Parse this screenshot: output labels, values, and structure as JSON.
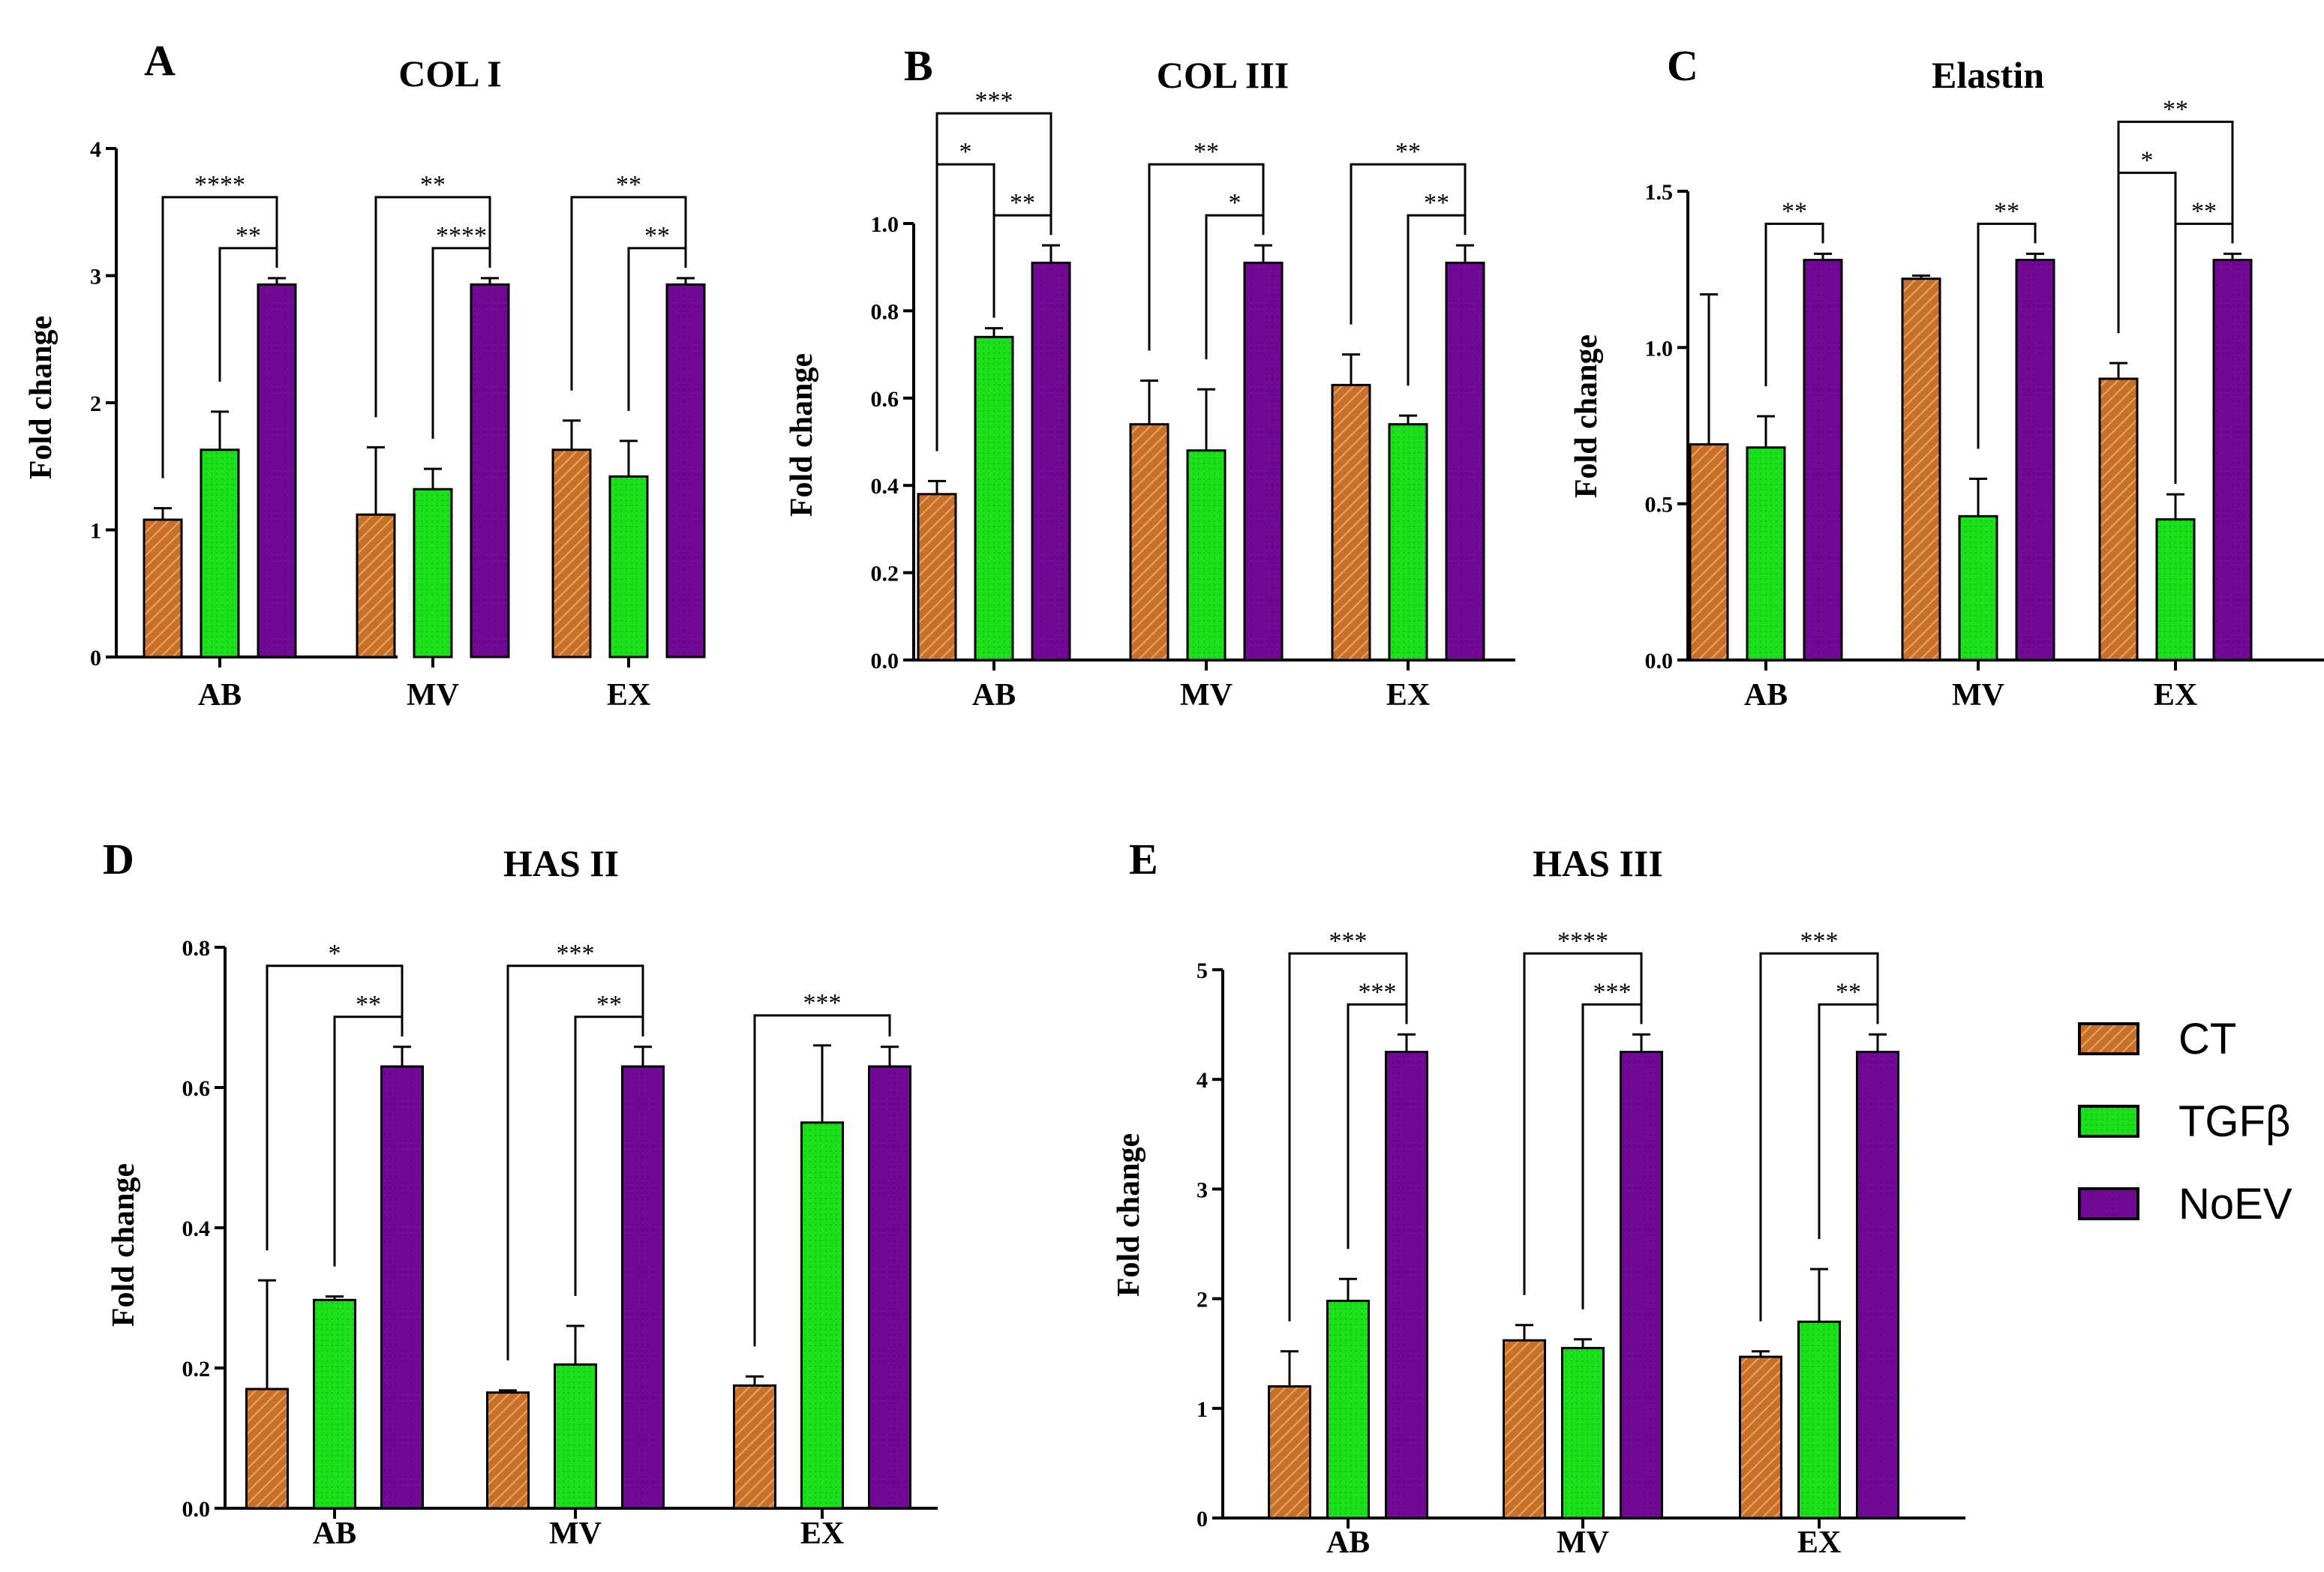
{
  "series_colors": {
    "CT": "#c8702a",
    "TGFβ": "#1be01b",
    "NoEV": "#720896"
  },
  "legend": [
    {
      "name": "CT",
      "label": "CT",
      "color": "#c8702a",
      "hatched": true
    },
    {
      "name": "TGFβ",
      "label": "TGFβ",
      "color": "#1be01b",
      "hatched": false
    },
    {
      "name": "NoEV",
      "label": "NoEV",
      "color": "#720896",
      "hatched": false
    }
  ],
  "chart_data": [
    {
      "panel": "A",
      "type": "bar",
      "title": "COL I",
      "ylabel": "Fold change",
      "xlabel": "",
      "ylim": [
        0,
        4
      ],
      "yticks": [
        "0",
        "1",
        "2",
        "3",
        "4"
      ],
      "grid": false,
      "categories": [
        "AB",
        "MV",
        "EX"
      ],
      "series": [
        {
          "name": "CT",
          "values": [
            1.08,
            1.12,
            1.63
          ],
          "errors": [
            0.09,
            0.53,
            0.23
          ]
        },
        {
          "name": "TGFβ",
          "values": [
            1.63,
            1.32,
            1.42
          ],
          "errors": [
            0.3,
            0.16,
            0.28
          ]
        },
        {
          "name": "NoEV",
          "values": [
            2.93,
            2.93,
            2.93
          ],
          "errors": [
            0.05,
            0.05,
            0.05
          ]
        }
      ],
      "annotations": [
        {
          "category": "AB",
          "from": "CT",
          "to": "NoEV",
          "label": "****"
        },
        {
          "category": "AB",
          "from": "TGFβ",
          "to": "NoEV",
          "label": "**"
        },
        {
          "category": "MV",
          "from": "CT",
          "to": "NoEV",
          "label": "**"
        },
        {
          "category": "MV",
          "from": "TGFβ",
          "to": "NoEV",
          "label": "****"
        },
        {
          "category": "EX",
          "from": "CT",
          "to": "NoEV",
          "label": "**"
        },
        {
          "category": "EX",
          "from": "TGFβ",
          "to": "NoEV",
          "label": "**"
        }
      ]
    },
    {
      "panel": "B",
      "type": "bar",
      "title": "COL III",
      "ylabel": "Fold change",
      "xlabel": "",
      "ylim": [
        0,
        1.0
      ],
      "yticks": [
        "0.0",
        "0.2",
        "0.4",
        "0.6",
        "0.8",
        "1.0"
      ],
      "grid": false,
      "categories": [
        "AB",
        "MV",
        "EX"
      ],
      "series": [
        {
          "name": "CT",
          "values": [
            0.38,
            0.54,
            0.63
          ],
          "errors": [
            0.03,
            0.1,
            0.07
          ]
        },
        {
          "name": "TGFβ",
          "values": [
            0.74,
            0.48,
            0.54
          ],
          "errors": [
            0.02,
            0.14,
            0.02
          ]
        },
        {
          "name": "NoEV",
          "values": [
            0.91,
            0.91,
            0.91
          ],
          "errors": [
            0.04,
            0.04,
            0.04
          ]
        }
      ],
      "annotations": [
        {
          "category": "AB",
          "from": "CT",
          "to": "NoEV",
          "label": "***"
        },
        {
          "category": "AB",
          "from": "TGFβ",
          "to": "NoEV",
          "label": "**"
        },
        {
          "category": "AB",
          "from": "CT",
          "to": "TGFβ",
          "label": "*"
        },
        {
          "category": "MV",
          "from": "CT",
          "to": "NoEV",
          "label": "**"
        },
        {
          "category": "MV",
          "from": "TGFβ",
          "to": "NoEV",
          "label": "*"
        },
        {
          "category": "EX",
          "from": "CT",
          "to": "NoEV",
          "label": "**"
        },
        {
          "category": "EX",
          "from": "TGFβ",
          "to": "NoEV",
          "label": "**"
        }
      ]
    },
    {
      "panel": "C",
      "type": "bar",
      "title": "Elastin",
      "ylabel": "Fold change",
      "xlabel": "",
      "ylim": [
        0,
        1.5
      ],
      "yticks": [
        "0.0",
        "0.5",
        "1.0",
        "1.5"
      ],
      "grid": false,
      "categories": [
        "AB",
        "MV",
        "EX"
      ],
      "series": [
        {
          "name": "CT",
          "values": [
            0.69,
            1.22,
            0.9
          ],
          "errors": [
            0.48,
            0.01,
            0.05
          ]
        },
        {
          "name": "TGFβ",
          "values": [
            0.68,
            0.46,
            0.45
          ],
          "errors": [
            0.1,
            0.12,
            0.08
          ]
        },
        {
          "name": "NoEV",
          "values": [
            1.28,
            1.28,
            1.28
          ],
          "errors": [
            0.02,
            0.02,
            0.02
          ]
        }
      ],
      "annotations": [
        {
          "category": "AB",
          "from": "TGFβ",
          "to": "NoEV",
          "label": "**"
        },
        {
          "category": "MV",
          "from": "TGFβ",
          "to": "NoEV",
          "label": "**"
        },
        {
          "category": "EX",
          "from": "CT",
          "to": "NoEV",
          "label": "**"
        },
        {
          "category": "EX",
          "from": "TGFβ",
          "to": "NoEV",
          "label": "**"
        },
        {
          "category": "EX",
          "from": "CT",
          "to": "TGFβ",
          "label": "*"
        }
      ]
    },
    {
      "panel": "D",
      "type": "bar",
      "title": "HAS II",
      "ylabel": "Fold change",
      "xlabel": "",
      "ylim": [
        0,
        0.8
      ],
      "yticks": [
        "0.0",
        "0.2",
        "0.4",
        "0.6",
        "0.8"
      ],
      "grid": false,
      "categories": [
        "AB",
        "MV",
        "EX"
      ],
      "series": [
        {
          "name": "CT",
          "values": [
            0.17,
            0.165,
            0.175
          ],
          "errors": [
            0.155,
            0.003,
            0.013
          ]
        },
        {
          "name": "TGFβ",
          "values": [
            0.297,
            0.205,
            0.55
          ],
          "errors": [
            0.005,
            0.055,
            0.11
          ]
        },
        {
          "name": "NoEV",
          "values": [
            0.63,
            0.63,
            0.63
          ],
          "errors": [
            0.028,
            0.028,
            0.028
          ]
        }
      ],
      "annotations": [
        {
          "category": "AB",
          "from": "CT",
          "to": "NoEV",
          "label": "*"
        },
        {
          "category": "AB",
          "from": "TGFβ",
          "to": "NoEV",
          "label": "**"
        },
        {
          "category": "MV",
          "from": "CT",
          "to": "NoEV",
          "label": "***"
        },
        {
          "category": "MV",
          "from": "TGFβ",
          "to": "NoEV",
          "label": "**"
        },
        {
          "category": "EX",
          "from": "CT",
          "to": "NoEV",
          "label": "***"
        }
      ]
    },
    {
      "panel": "E",
      "type": "bar",
      "title": "HAS III",
      "ylabel": "Fold change",
      "xlabel": "",
      "ylim": [
        0,
        5
      ],
      "yticks": [
        "0",
        "1",
        "2",
        "3",
        "4",
        "5"
      ],
      "grid": false,
      "categories": [
        "AB",
        "MV",
        "EX"
      ],
      "series": [
        {
          "name": "CT",
          "values": [
            1.2,
            1.62,
            1.47
          ],
          "errors": [
            0.32,
            0.14,
            0.05
          ]
        },
        {
          "name": "TGFβ",
          "values": [
            1.98,
            1.55,
            1.79
          ],
          "errors": [
            0.2,
            0.08,
            0.48
          ]
        },
        {
          "name": "NoEV",
          "values": [
            4.25,
            4.25,
            4.25
          ],
          "errors": [
            0.16,
            0.16,
            0.16
          ]
        }
      ],
      "annotations": [
        {
          "category": "AB",
          "from": "CT",
          "to": "NoEV",
          "label": "***"
        },
        {
          "category": "AB",
          "from": "TGFβ",
          "to": "NoEV",
          "label": "***"
        },
        {
          "category": "MV",
          "from": "CT",
          "to": "NoEV",
          "label": "****"
        },
        {
          "category": "MV",
          "from": "TGFβ",
          "to": "NoEV",
          "label": "***"
        },
        {
          "category": "EX",
          "from": "CT",
          "to": "NoEV",
          "label": "***"
        },
        {
          "category": "EX",
          "from": "TGFβ",
          "to": "NoEV",
          "label": "**"
        }
      ]
    }
  ]
}
